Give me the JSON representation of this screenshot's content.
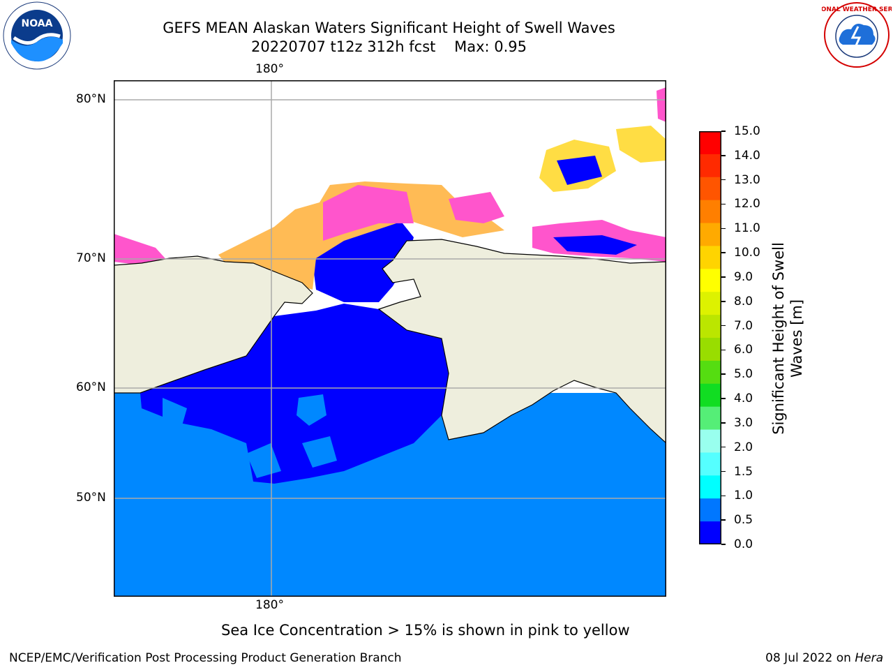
{
  "title": {
    "line1": "GEFS MEAN Alaskan Waters Significant Height of Swell Waves",
    "line2": "20220707 t12z 312h fcst    Max: 0.95"
  },
  "map": {
    "lon_labels": [
      "180°",
      "180°"
    ],
    "lat_labels": [
      "80°N",
      "70°N",
      "60°N",
      "50°N"
    ]
  },
  "colorbar": {
    "label_line1": "Significant Height of Swell",
    "label_line2": "Waves [m]",
    "ticks": [
      "15.0",
      "14.0",
      "13.0",
      "12.0",
      "11.0",
      "10.0",
      "9.0",
      "8.0",
      "7.0",
      "6.0",
      "5.0",
      "4.0",
      "3.0",
      "2.0",
      "1.5",
      "1.0",
      "0.5",
      "0.0"
    ],
    "colors": [
      "#ff0000",
      "#ff2a00",
      "#ff5500",
      "#ff7f00",
      "#ffaa00",
      "#ffd400",
      "#ffff00",
      "#ddf200",
      "#bbe600",
      "#99dd00",
      "#55dd11",
      "#11dd22",
      "#55ee77",
      "#99ffee",
      "#55ffff",
      "#00ffff",
      "#0077ff",
      "#0000ff"
    ]
  },
  "colors": {
    "land": "#eeeedd",
    "ocean_low": "#0000ff",
    "ocean_mid": "#0088ff",
    "ice_pink": "#ff55cc",
    "ice_orange": "#ffbb55",
    "ice_yellow": "#ffdd44",
    "grid": "#aaaaaa"
  },
  "caption": "Sea Ice Concentration > 15% is shown in pink to yellow",
  "footer": {
    "left": "NCEP/EMC/Verification Post Processing Product Generation Branch",
    "right_date": "08 Jul 2022 on ",
    "right_machine": "Hera"
  },
  "logos": {
    "noaa_text": "NOAA",
    "nws_text": "NATIONAL WEATHER SERVICE"
  }
}
